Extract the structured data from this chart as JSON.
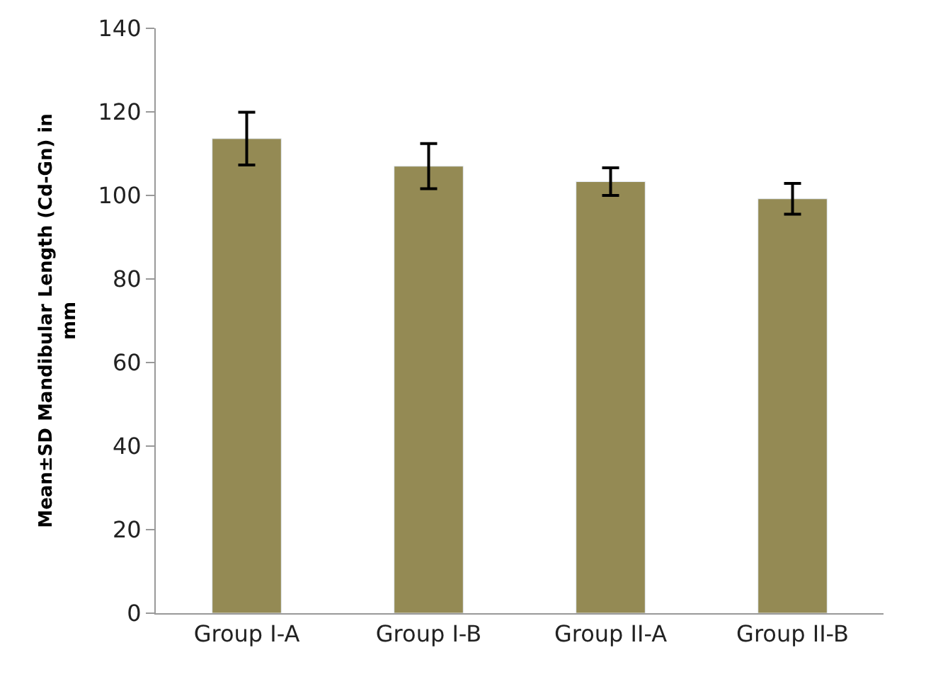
{
  "chart_data": {
    "type": "bar",
    "ylabel": "Mean±SD Mandibular Length (Cd-Gn) in\nmm",
    "categories": [
      "Group I-A",
      "Group I-B",
      "Group II-A",
      "Group II-B"
    ],
    "values": [
      113.6,
      107.0,
      103.3,
      99.2
    ],
    "errors": [
      6.3,
      5.4,
      3.3,
      3.7
    ],
    "color": "#948a54",
    "ylim": [
      0,
      140
    ],
    "yticks": [
      0,
      20,
      40,
      60,
      80,
      100,
      120,
      140
    ]
  }
}
